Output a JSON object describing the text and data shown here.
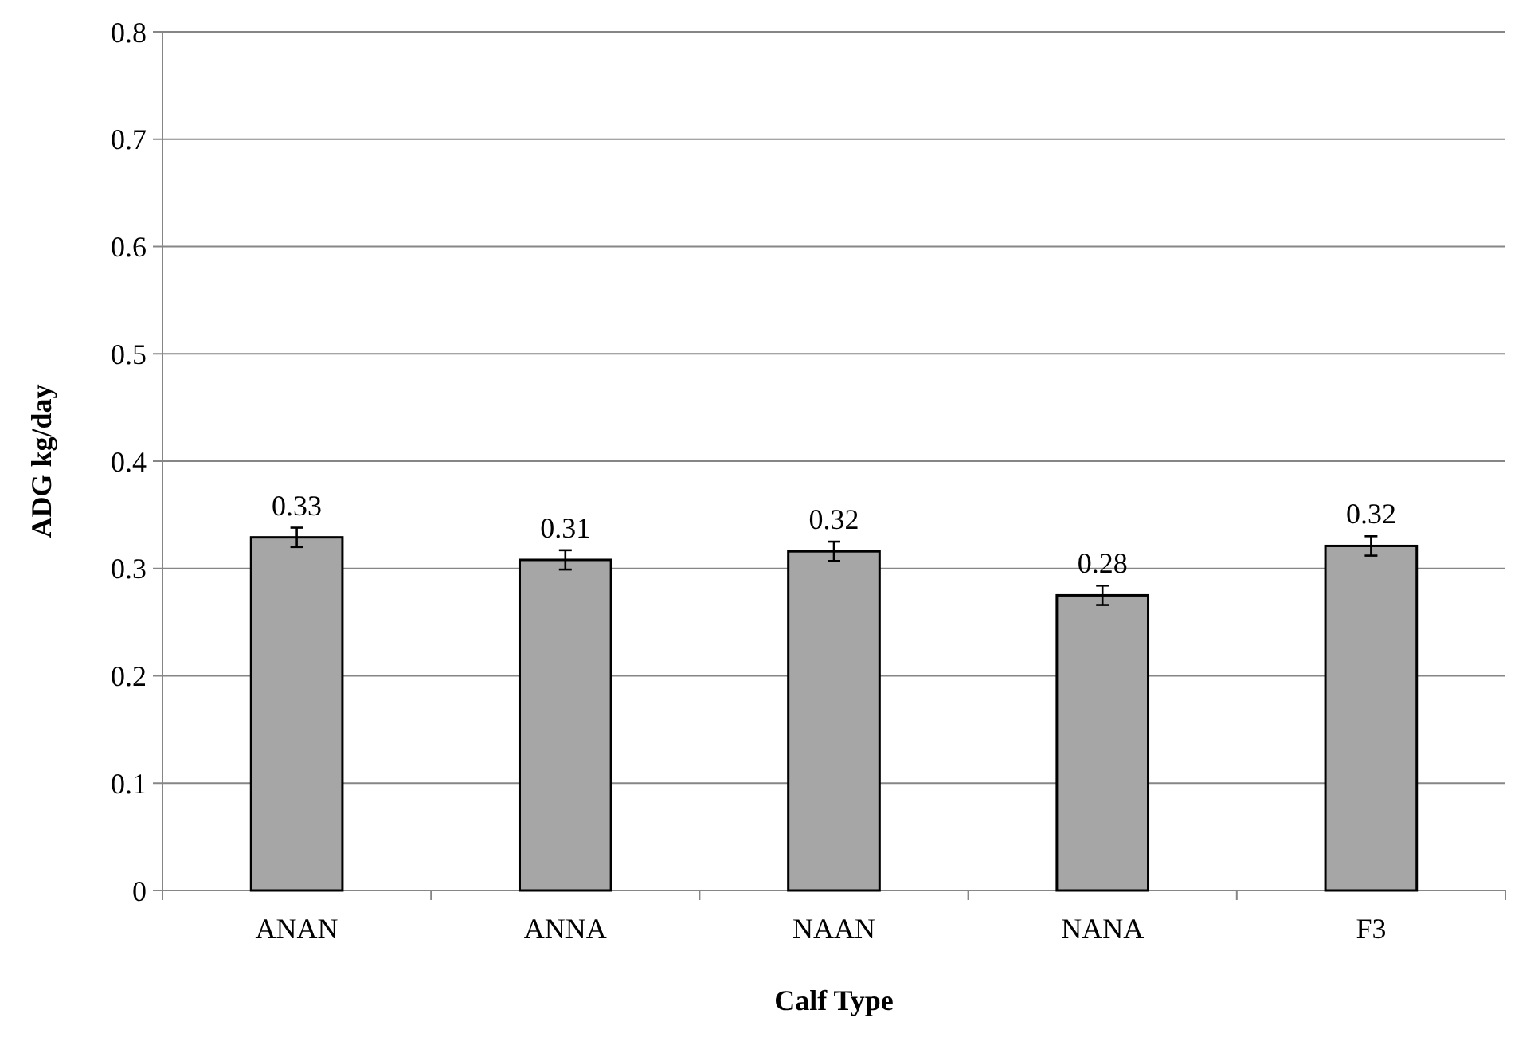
{
  "chart_data": {
    "type": "bar",
    "xlabel": "Calf Type",
    "ylabel": "ADG kg/day",
    "categories": [
      "ANAN",
      "ANNA",
      "NAAN",
      "NANA",
      "F3"
    ],
    "values": [
      0.329,
      0.308,
      0.316,
      0.275,
      0.321
    ],
    "value_labels": [
      "0.33",
      "0.31",
      "0.32",
      "0.28",
      "0.32"
    ],
    "errors": [
      0.009,
      0.009,
      0.009,
      0.009,
      0.009
    ],
    "color": "#a6a6a6",
    "ylim": [
      0,
      0.8
    ],
    "yticks": [
      {
        "value": 0,
        "label": "0"
      },
      0.1,
      0.2,
      0.3,
      0.4,
      0.5,
      0.6,
      0.7,
      0.8
    ],
    "grid": "y"
  }
}
